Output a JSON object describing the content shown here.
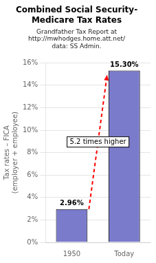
{
  "chart_data": {
    "type": "bar",
    "title": "Combined Social Security-\nMedicare Tax Rates",
    "subtitle": "Grandfather Tax Report at\nhttp://mwhodges.home.att.net/\ndata: SS Admin.",
    "ylabel": "Tax rates – FICA\n(employer + employee)",
    "categories": [
      "1950",
      "Today"
    ],
    "values": [
      2.96,
      15.3
    ],
    "value_labels": [
      "2.96%",
      "15.30%"
    ],
    "data_labels": true,
    "color": "#7b7bcc",
    "ylim": [
      0,
      16
    ],
    "yticks": [
      {
        "value": 0,
        "label": "0%"
      },
      {
        "value": 2,
        "label": "2%"
      },
      {
        "value": 4,
        "label": "4%"
      },
      {
        "value": 6,
        "label": "6%"
      },
      {
        "value": 8,
        "label": "8%"
      },
      {
        "value": 10,
        "label": "10%"
      },
      {
        "value": 12,
        "label": "12%"
      },
      {
        "value": 14,
        "label": "14%"
      },
      {
        "value": 16,
        "label": "16%"
      }
    ],
    "annotation": "5.2 times higher",
    "grid": true
  }
}
